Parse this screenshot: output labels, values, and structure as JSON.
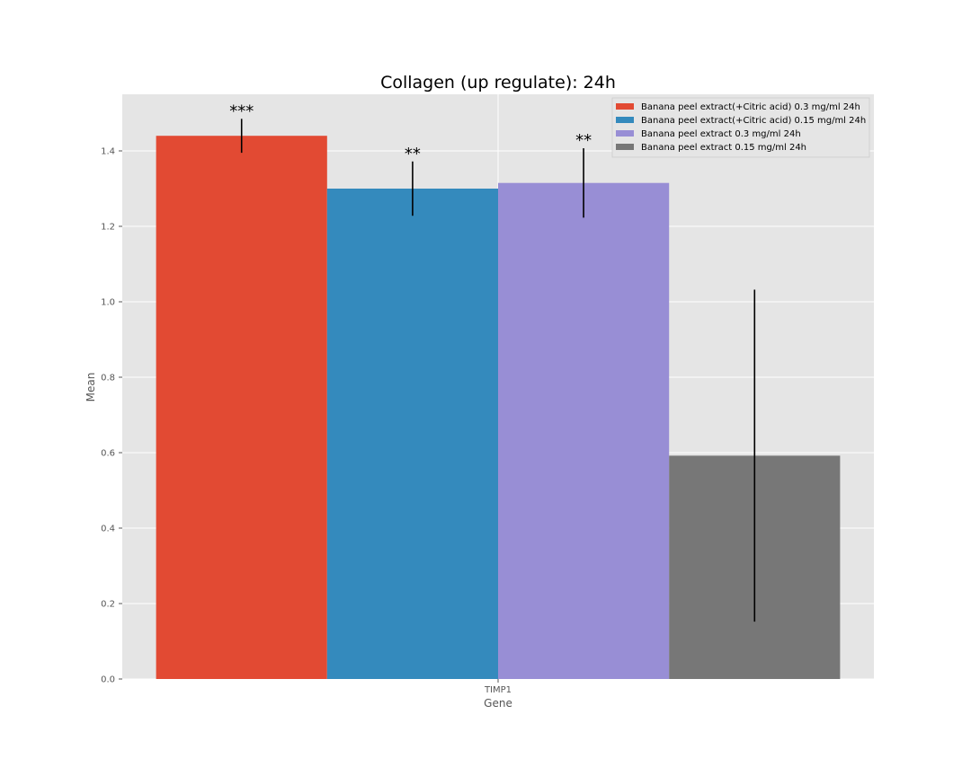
{
  "chart_data": {
    "type": "bar",
    "title": "Collagen (up regulate): 24h",
    "xlabel": "Gene",
    "ylabel": "Mean",
    "categories": [
      "TIMP1"
    ],
    "ylim": [
      0,
      1.55
    ],
    "yticks": [
      "0.0",
      "0.2",
      "0.4",
      "0.6",
      "0.8",
      "1.0",
      "1.2",
      "1.4"
    ],
    "grid": true,
    "legend_position": "top-right",
    "series": [
      {
        "name": "Banana peel extract(+Citric acid) 0.3 mg/ml 24h",
        "values": [
          1.44
        ],
        "error": [
          0.045
        ],
        "significance": "***",
        "color": "#E24A33"
      },
      {
        "name": "Banana peel extract(+Citric acid) 0.15 mg/ml 24h",
        "values": [
          1.3
        ],
        "error": [
          0.072
        ],
        "significance": "**",
        "color": "#348ABD"
      },
      {
        "name": "Banana peel extract 0.3 mg/ml 24h",
        "values": [
          1.315
        ],
        "error": [
          0.092
        ],
        "significance": "**",
        "color": "#988ED5"
      },
      {
        "name": "Banana peel extract 0.15 mg/ml 24h",
        "values": [
          0.592
        ],
        "error": [
          0.44
        ],
        "significance": "",
        "color": "#777777"
      }
    ]
  }
}
